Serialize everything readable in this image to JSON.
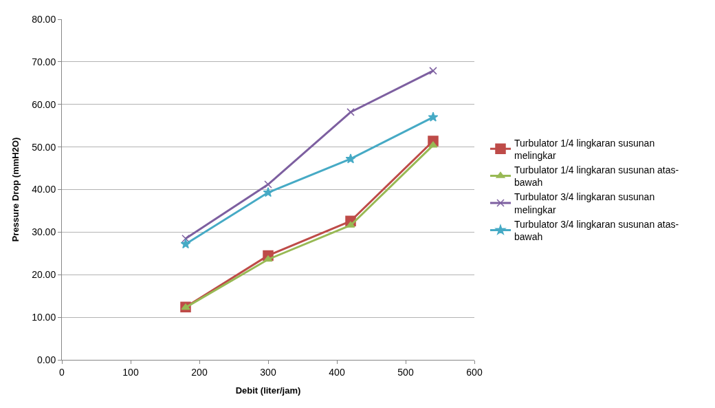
{
  "chart_data": {
    "type": "line",
    "xlabel": "Debit (liter/jam)",
    "ylabel": "Pressure Drop (mmH2O)",
    "x": [
      180,
      300,
      420,
      540
    ],
    "series": [
      {
        "name": "Turbulator 1/4 lingkaran susunan melingkar",
        "color": "#be4b48",
        "marker": "square",
        "values": [
          12.4,
          24.5,
          32.6,
          51.4
        ]
      },
      {
        "name": "Turbulator 1/4 lingkaran susunan atas-bawah",
        "color": "#98b954",
        "marker": "triangle",
        "values": [
          12.3,
          23.6,
          31.6,
          50.4
        ]
      },
      {
        "name": "Turbulator 3/4 lingkaran susunan melingkar",
        "color": "#7d5fa0",
        "marker": "cross",
        "values": [
          28.5,
          41.2,
          58.2,
          67.9
        ]
      },
      {
        "name": "Turbulator 3/4 lingkaran susunan atas-bawah",
        "color": "#46aac5",
        "marker": "star",
        "values": [
          27.2,
          39.3,
          47.2,
          57.0
        ]
      }
    ],
    "xlim": [
      0,
      600
    ],
    "xticks": [
      0,
      100,
      200,
      300,
      400,
      500,
      600
    ],
    "ylim": [
      0,
      80
    ],
    "yticks": [
      {
        "value": 0,
        "label": "0.00"
      },
      {
        "value": 10,
        "label": "10.00"
      },
      {
        "value": 20,
        "label": "20.00"
      },
      {
        "value": 30,
        "label": "30.00"
      },
      {
        "value": 40,
        "label": "40.00"
      },
      {
        "value": 50,
        "label": "50.00"
      },
      {
        "value": 60,
        "label": "60.00"
      },
      {
        "value": 70,
        "label": "70.00"
      },
      {
        "value": 80,
        "label": "80.00"
      }
    ],
    "grid": "y",
    "legend": "right",
    "line_style": "solid"
  }
}
